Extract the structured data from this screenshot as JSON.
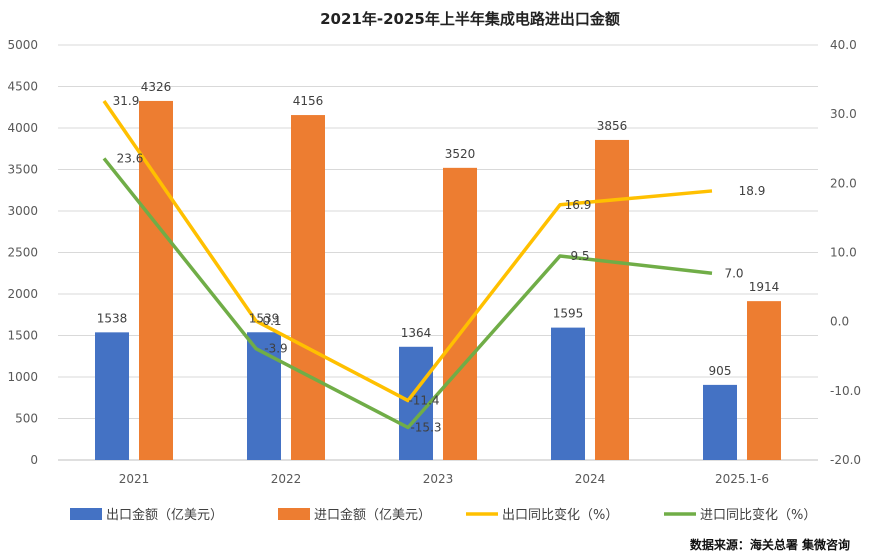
{
  "chart_data": {
    "type": "bar",
    "title": "2021年-2025年上半年集成电路进出口金额",
    "categories": [
      "2021",
      "2022",
      "2023",
      "2024",
      "2025.1-6"
    ],
    "series": [
      {
        "name": "出口金额（亿美元）",
        "type": "bar",
        "axis": "left",
        "color": "#4472C4",
        "values": [
          1538,
          1539,
          1364,
          1595,
          905
        ]
      },
      {
        "name": "进口金额（亿美元）",
        "type": "bar",
        "axis": "left",
        "color": "#ED7D31",
        "values": [
          4326,
          4156,
          3520,
          3856,
          1914
        ]
      },
      {
        "name": "出口同比变化（%）",
        "type": "line",
        "axis": "right",
        "color": "#FFC000",
        "values": [
          31.9,
          0.1,
          -11.4,
          16.9,
          18.9
        ]
      },
      {
        "name": "进口同比变化（%）",
        "type": "line",
        "axis": "right",
        "color": "#70AD47",
        "values": [
          23.6,
          -3.9,
          -15.3,
          9.5,
          7.0
        ]
      }
    ],
    "y_left": {
      "min": 0,
      "max": 5000,
      "step": 500
    },
    "y_right": {
      "min": -20,
      "max": 40,
      "step": 10
    },
    "grid": true,
    "legend": "bottom",
    "source": "数据来源：海关总署   集微咨询"
  }
}
